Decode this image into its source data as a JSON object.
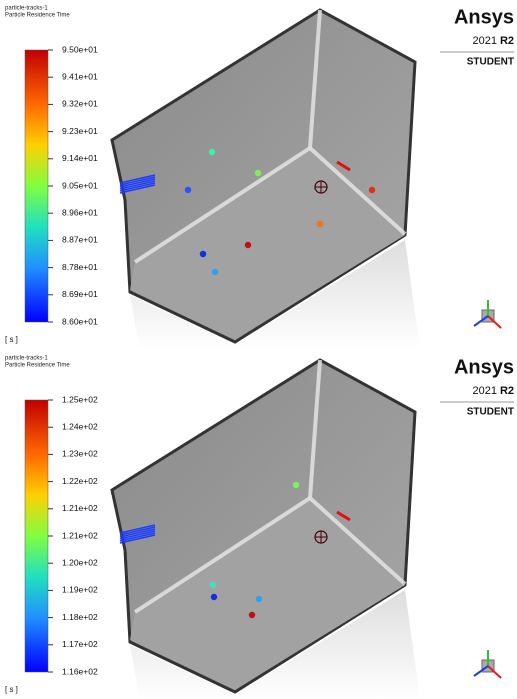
{
  "panels": [
    {
      "header": {
        "line1": "particle-tracks-1",
        "line2": "Particle Residence Time"
      },
      "colorbar": {
        "labels": [
          "9.50e+01",
          "9.41e+01",
          "9.32e+01",
          "9.23e+01",
          "9.14e+01",
          "9.05e+01",
          "8.96e+01",
          "8.87e+01",
          "8.78e+01",
          "8.69e+01",
          "8.60e+01"
        ],
        "unit": "[ s ]"
      },
      "logo": {
        "brand": "Ansys",
        "year": "2021",
        "release": "R2",
        "edition": "STUDENT"
      }
    },
    {
      "header": {
        "line1": "particle-tracks-1",
        "line2": "Particle Residence Time"
      },
      "colorbar": {
        "labels": [
          "1.25e+02",
          "1.24e+02",
          "1.23e+02",
          "1.22e+02",
          "1.21e+02",
          "1.21e+02",
          "1.20e+02",
          "1.19e+02",
          "1.18e+02",
          "1.17e+02",
          "1.16e+02"
        ],
        "unit": "[ s ]"
      },
      "logo": {
        "brand": "Ansys",
        "year": "2021",
        "release": "R2",
        "edition": "STUDENT"
      }
    }
  ]
}
